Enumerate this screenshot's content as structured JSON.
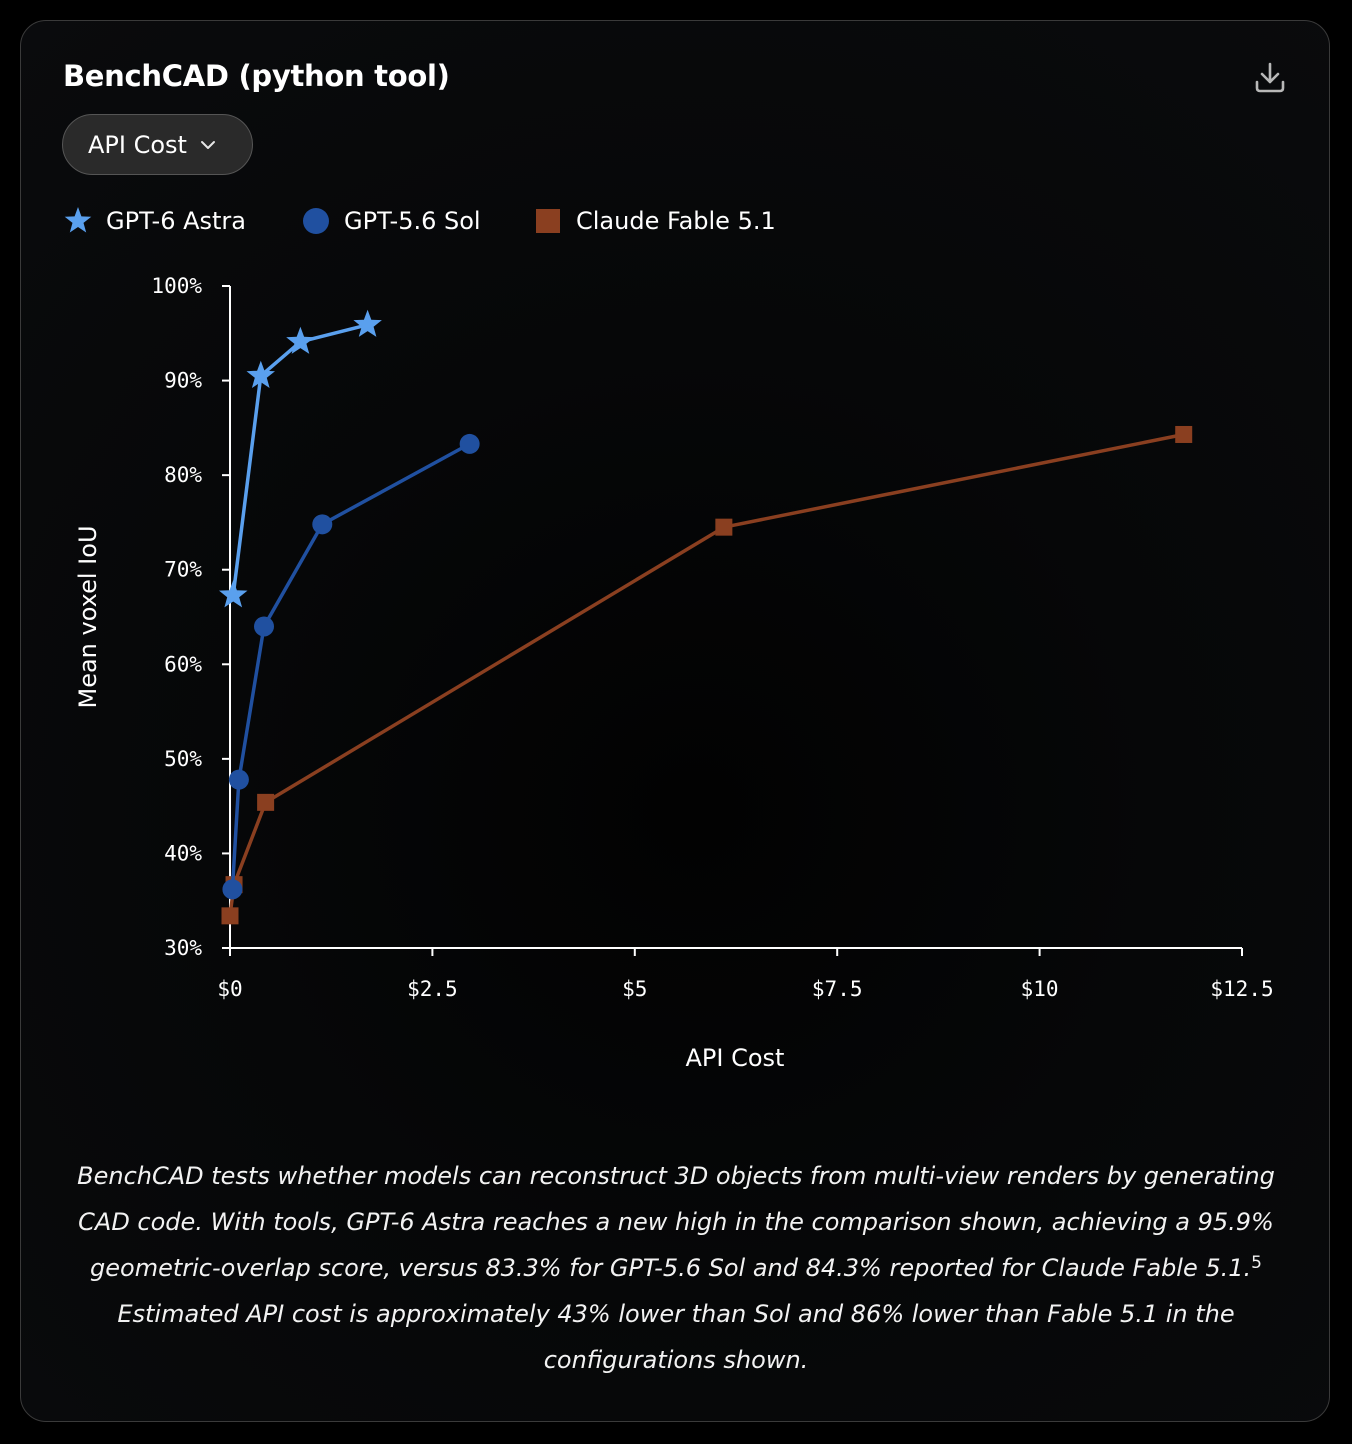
{
  "card": {
    "title": "BenchCAD (python tool)",
    "download_icon": "download-icon",
    "dropdown": {
      "selected": "API Cost",
      "icon": "chevron-down-icon"
    }
  },
  "legend": [
    {
      "label": "GPT-6 Astra",
      "marker": "star",
      "color": "#5aa0ee"
    },
    {
      "label": "GPT-5.6 Sol",
      "marker": "circle",
      "color": "#2050a0"
    },
    {
      "label": "Claude Fable 5.1",
      "marker": "square",
      "color": "#8a3f20"
    }
  ],
  "chart_data": {
    "type": "line",
    "xlabel": "API Cost",
    "ylabel": "Mean voxel IoU",
    "xlim": [
      0,
      12.5
    ],
    "ylim": [
      30,
      100
    ],
    "x_ticks": [
      0,
      2.5,
      5,
      7.5,
      10,
      12.5
    ],
    "x_tick_labels": [
      "$0",
      "$2.5",
      "$5",
      "$7.5",
      "$10",
      "$12.5"
    ],
    "y_ticks": [
      30,
      40,
      50,
      60,
      70,
      80,
      90,
      100
    ],
    "y_tick_labels": [
      "30%",
      "40%",
      "50%",
      "60%",
      "70%",
      "80%",
      "90%",
      "100%"
    ],
    "grid": false,
    "legend_position": "top-left",
    "series": [
      {
        "name": "GPT-6 Astra",
        "marker": "star",
        "color": "#5aa0ee",
        "x": [
          0.04,
          0.38,
          0.87,
          1.7
        ],
        "y": [
          67.3,
          90.5,
          94.1,
          95.9
        ]
      },
      {
        "name": "GPT-5.6 Sol",
        "marker": "circle",
        "color": "#2050a0",
        "x": [
          0.03,
          0.11,
          0.42,
          1.14,
          2.96
        ],
        "y": [
          36.2,
          47.8,
          64.0,
          74.8,
          83.3
        ]
      },
      {
        "name": "Claude Fable 5.1",
        "marker": "square",
        "color": "#8a3f20",
        "x": [
          0.0,
          0.05,
          0.44,
          6.1,
          11.78
        ],
        "y": [
          33.4,
          36.7,
          45.4,
          74.5,
          84.3
        ]
      }
    ]
  },
  "caption": {
    "text": "BenchCAD tests whether models can reconstruct 3D objects from multi-view renders by generating CAD code. With tools, GPT-6 Astra reaches a new high in the comparison shown, achieving a 95.9% geometric-overlap score, versus 83.3% for GPT-5.6 Sol and 84.3% reported for Claude Fable 5.1.",
    "footnote": "5",
    "text_after": " Estimated API cost is approximately 43% lower than Sol and 86% lower than Fable 5.1 in the configurations shown."
  }
}
